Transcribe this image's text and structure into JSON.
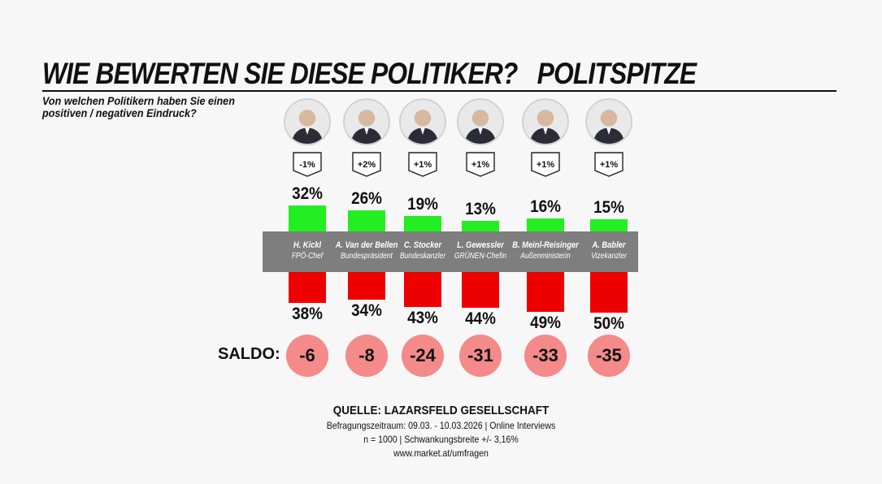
{
  "header": {
    "title": "WIE BEWERTEN SIE DIESE POLITIKER?",
    "subtitle": "POLITSPITZE",
    "question": "Von welchen Politikern haben Sie einen positiven / negativen Eindruck?"
  },
  "saldo_label": "SALDO:",
  "source": {
    "label": "QUELLE: LAZARSFELD GESELLSCHAFT",
    "period": "Befragungszeitraum: 09.03. - 10.03.2026 | Online Interviews",
    "sample": "n = 1000 | Schwankungsbreite +/-  3,16%",
    "url": "www.market.at/umfragen"
  },
  "colors": {
    "positive": "#22ee22",
    "negative": "#ee0000",
    "saldo": "#f48a8a",
    "band": "#7e7e7e"
  },
  "chart_data": {
    "type": "bar",
    "categories": [
      "H. Kickl",
      "A. Van der Bellen",
      "C. Stocker",
      "L. Gewessler",
      "B. Meinl-Reisinger",
      "A. Babler"
    ],
    "roles": [
      "FPÖ-Chef",
      "Bundespräsident",
      "Bundeskanzler",
      "GRÜNEN-Chefin",
      "Außenministerin",
      "Vizekanzler"
    ],
    "changes": [
      "-1%",
      "+2%",
      "+1%",
      "+1%",
      "+1%",
      "+1%"
    ],
    "series": [
      {
        "name": "positiv",
        "values": [
          32,
          26,
          19,
          13,
          16,
          15
        ]
      },
      {
        "name": "negativ",
        "values": [
          38,
          34,
          43,
          44,
          49,
          50
        ]
      }
    ],
    "positive_labels": [
      "32%",
      "26%",
      "19%",
      "13%",
      "16%",
      "15%"
    ],
    "negative_labels": [
      "38%",
      "34%",
      "43%",
      "44%",
      "49%",
      "50%"
    ],
    "saldo": [
      "-6",
      "-8",
      "-24",
      "-31",
      "-33",
      "-35"
    ]
  }
}
